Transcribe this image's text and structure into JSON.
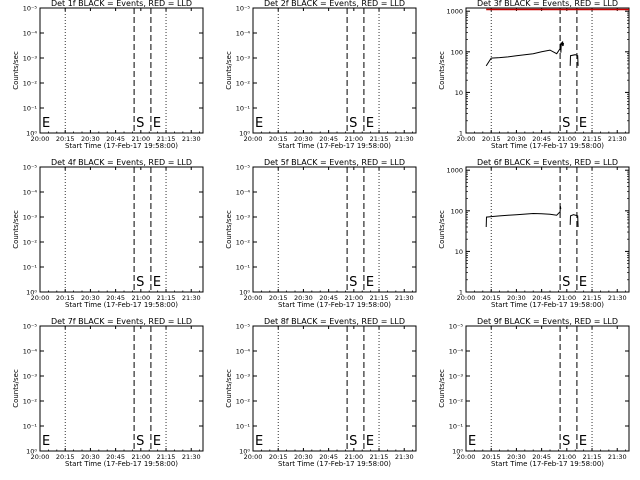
{
  "chart_data": {
    "type": "line",
    "shared": {
      "x_tick_labels": [
        "20:00",
        "20:15",
        "20:30",
        "20:45",
        "21:00",
        "21:15",
        "21:30"
      ],
      "x_range_minutes_after_20:00": [
        0,
        97
      ],
      "xlabel": "Start Time (17-Feb-17 19:58:00)",
      "ylabel": "Counts/sec",
      "dotted_lines_at": [
        "20:15",
        "21:15"
      ],
      "dashed_lines_at": [
        "20:56",
        "21:06"
      ],
      "start_marker_label": "S",
      "end_marker_label": "E"
    },
    "panels": [
      {
        "title": "Det 1f BLACK = Events, RED = LLD",
        "y_tick_labels": [
          "10⁰",
          "10⁻¹",
          "10⁻²",
          "10⁻³",
          "10⁻⁴",
          "10⁻⁵"
        ],
        "ylim": [
          1,
          1e-05
        ],
        "markers": [
          {
            "label": "E",
            "at": "20:00"
          },
          {
            "label": "S",
            "at": "20:56"
          },
          {
            "label": "E",
            "at": "21:06"
          }
        ],
        "series": []
      },
      {
        "title": "Det 2f BLACK = Events, RED = LLD",
        "y_tick_labels": [
          "10⁰",
          "10⁻¹",
          "10⁻²",
          "10⁻³",
          "10⁻⁴",
          "10⁻⁵"
        ],
        "ylim": [
          1,
          1e-05
        ],
        "markers": [
          {
            "label": "E",
            "at": "20:00"
          },
          {
            "label": "S",
            "at": "20:56"
          },
          {
            "label": "E",
            "at": "21:06"
          }
        ],
        "series": []
      },
      {
        "title": "Det 3f BLACK = Events, RED = LLD",
        "y_tick_labels": [
          "1",
          "10",
          "100",
          "1000"
        ],
        "ylim": [
          1,
          1200
        ],
        "markers": [
          {
            "label": "S",
            "at": "20:56"
          },
          {
            "label": "E",
            "at": "21:06"
          }
        ],
        "series": [
          {
            "color": "#000000",
            "x": [
              12,
              15,
              20,
              25,
              30,
              35,
              40,
              45,
              50,
              54,
              56,
              56.2,
              56.5,
              56.7,
              57.3,
              57.5,
              57.8,
              58
            ],
            "y": [
              45,
              70,
              72,
              75,
              80,
              85,
              90,
              100,
              110,
              90,
              120,
              160,
              95,
              170,
              150,
              180,
              140,
              165
            ]
          },
          {
            "color": "#000000",
            "x": [
              62,
              62.2,
              65,
              66.5,
              66.7
            ],
            "y": [
              45,
              80,
              85,
              80,
              45
            ]
          },
          {
            "color": "#cc0000",
            "x": [
              12,
              97
            ],
            "y": [
              1100,
              1100
            ]
          }
        ]
      },
      {
        "title": "Det 4f BLACK = Events, RED = LLD",
        "y_tick_labels": [
          "10⁰",
          "10⁻¹",
          "10⁻²",
          "10⁻³",
          "10⁻⁴",
          "10⁻⁵"
        ],
        "ylim": [
          1,
          1e-05
        ],
        "markers": [
          {
            "label": "S",
            "at": "20:56"
          },
          {
            "label": "E",
            "at": "21:06"
          }
        ],
        "series": []
      },
      {
        "title": "Det 5f BLACK = Events, RED = LLD",
        "y_tick_labels": [
          "10⁰",
          "10⁻¹",
          "10⁻²",
          "10⁻³",
          "10⁻⁴",
          "10⁻⁵"
        ],
        "ylim": [
          1,
          1e-05
        ],
        "markers": [
          {
            "label": "S",
            "at": "20:56"
          },
          {
            "label": "E",
            "at": "21:06"
          }
        ],
        "series": []
      },
      {
        "title": "Det 6f BLACK = Events, RED = LLD",
        "y_tick_labels": [
          "1",
          "10",
          "100",
          "1000"
        ],
        "ylim": [
          1,
          1200
        ],
        "markers": [
          {
            "label": "S",
            "at": "20:56"
          },
          {
            "label": "E",
            "at": "21:06"
          }
        ],
        "series": [
          {
            "color": "#000000",
            "x": [
              12,
              12.2,
              15,
              20,
              25,
              30,
              35,
              40,
              45,
              50,
              54,
              56,
              56.2,
              56.4
            ],
            "y": [
              40,
              70,
              72,
              75,
              78,
              80,
              83,
              86,
              85,
              82,
              78,
              95,
              130,
              110
            ]
          },
          {
            "color": "#000000",
            "x": [
              62,
              62.2,
              64,
              66.5,
              66.7
            ],
            "y": [
              45,
              75,
              80,
              75,
              40
            ]
          }
        ]
      },
      {
        "title": "Det 7f BLACK = Events, RED = LLD",
        "y_tick_labels": [
          "10⁰",
          "10⁻¹",
          "10⁻²",
          "10⁻³",
          "10⁻⁴",
          "10⁻⁵"
        ],
        "ylim": [
          1,
          1e-05
        ],
        "markers": [
          {
            "label": "E",
            "at": "20:00"
          },
          {
            "label": "S",
            "at": "20:56"
          },
          {
            "label": "E",
            "at": "21:06"
          }
        ],
        "series": []
      },
      {
        "title": "Det 8f BLACK = Events, RED = LLD",
        "y_tick_labels": [
          "10⁰",
          "10⁻¹",
          "10⁻²",
          "10⁻³",
          "10⁻⁴",
          "10⁻⁵"
        ],
        "ylim": [
          1,
          1e-05
        ],
        "markers": [
          {
            "label": "E",
            "at": "20:00"
          },
          {
            "label": "S",
            "at": "20:56"
          },
          {
            "label": "E",
            "at": "21:06"
          }
        ],
        "series": []
      },
      {
        "title": "Det 9f BLACK = Events, RED = LLD",
        "y_tick_labels": [
          "10⁰",
          "10⁻¹",
          "10⁻²",
          "10⁻³",
          "10⁻⁴",
          "10⁻⁵"
        ],
        "ylim": [
          1,
          1e-05
        ],
        "markers": [
          {
            "label": "E",
            "at": "20:00"
          },
          {
            "label": "S",
            "at": "20:56"
          },
          {
            "label": "E",
            "at": "21:06"
          }
        ],
        "series": []
      }
    ]
  }
}
